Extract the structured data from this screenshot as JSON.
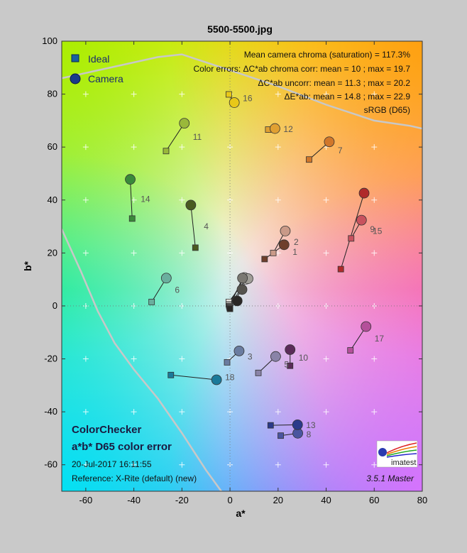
{
  "figure": {
    "title": "5500-5500.jpg"
  },
  "chart_data": {
    "type": "scatter",
    "title": "5500-5500.jpg",
    "xlabel": "a*",
    "ylabel": "b*",
    "xlim": [
      -70,
      80
    ],
    "ylim": [
      -70,
      100
    ],
    "xticks": [
      -60,
      -40,
      -20,
      0,
      20,
      40,
      60,
      80
    ],
    "yticks": [
      -60,
      -40,
      -20,
      0,
      20,
      40,
      60,
      80,
      100
    ],
    "grid": true,
    "legend": {
      "position": "top-left",
      "entries": [
        {
          "label": "Ideal",
          "marker": "square",
          "color": "#1a5fa0"
        },
        {
          "label": "Camera",
          "marker": "circle",
          "color": "#1a3a8a"
        }
      ]
    },
    "stats": [
      "Mean camera chroma (saturation) = 117.3%",
      "Color errors:  ΔC*ab chroma corr:  mean = 10 ;  max = 19.7",
      "ΔC*ab uncorr:  mean = 11.3 ;  max = 20.2",
      "ΔE*ab:  mean = 14.8 ;  max = 22.9",
      "sRGB (D65)"
    ],
    "annotations": {
      "chart_name": "ColorChecker",
      "subtitle": "a*b* D65 color error",
      "timestamp": "20-Jul-2017 16:11:55",
      "reference": "Reference: X-Rite (default) (new)",
      "version": "3.5.1  Master",
      "logo_text": "imatest"
    },
    "gamut_boundary": [
      [
        -70,
        86
      ],
      [
        -60,
        88
      ],
      [
        -45,
        91
      ],
      [
        -30,
        94
      ],
      [
        -20,
        95
      ],
      [
        -10,
        92
      ],
      [
        0,
        89
      ],
      [
        20,
        83
      ],
      [
        40,
        76
      ],
      [
        60,
        70
      ],
      [
        75,
        68
      ],
      [
        80,
        67
      ]
    ],
    "gamut_boundary_lower": [
      [
        -70,
        29
      ],
      [
        -62,
        13
      ],
      [
        -55,
        -2
      ],
      [
        -48,
        -14
      ],
      [
        -40,
        -24
      ],
      [
        -30,
        -35
      ],
      [
        -20,
        -48
      ],
      [
        -10,
        -62
      ],
      [
        -2,
        -72
      ]
    ],
    "points": [
      {
        "id": "1",
        "ideal": [
          14.4,
          17.7
        ],
        "camera": [
          22.5,
          23.1
        ],
        "color": "#6e3f2c"
      },
      {
        "id": "2",
        "ideal": [
          18.0,
          20.0
        ],
        "camera": [
          23.0,
          28.3
        ],
        "color": "#c99a88"
      },
      {
        "id": "3",
        "ideal": [
          -1.2,
          -21.3
        ],
        "camera": [
          3.8,
          -17.0
        ],
        "color": "#6a7ca0"
      },
      {
        "id": "4",
        "ideal": [
          -14.4,
          22.0
        ],
        "camera": [
          -16.3,
          38.1
        ],
        "color": "#4a5a20"
      },
      {
        "id": "5",
        "ideal": [
          11.8,
          -25.3
        ],
        "camera": [
          19.0,
          -19.1
        ],
        "color": "#8a83a8"
      },
      {
        "id": "6",
        "ideal": [
          -32.6,
          1.5
        ],
        "camera": [
          -26.5,
          10.5
        ],
        "color": "#6aaf9e"
      },
      {
        "id": "7",
        "ideal": [
          32.9,
          55.3
        ],
        "camera": [
          41.3,
          62.0
        ],
        "color": "#d1772a"
      },
      {
        "id": "8",
        "ideal": [
          21.1,
          -49.0
        ],
        "camera": [
          28.2,
          -48.1
        ],
        "color": "#4a55a0"
      },
      {
        "id": "9",
        "ideal": [
          50.4,
          25.5
        ],
        "camera": [
          54.7,
          32.4
        ],
        "color": "#c8525e"
      },
      {
        "id": "10",
        "ideal": [
          25.0,
          -22.6
        ],
        "camera": [
          25.0,
          -16.5
        ],
        "color": "#5a2c58"
      },
      {
        "id": "11",
        "ideal": [
          -26.6,
          58.5
        ],
        "camera": [
          -19.0,
          69.0
        ],
        "color": "#9ab83a"
      },
      {
        "id": "12",
        "ideal": [
          15.9,
          66.6
        ],
        "camera": [
          18.7,
          67.0
        ],
        "color": "#e0a032"
      },
      {
        "id": "13",
        "ideal": [
          16.9,
          -45.1
        ],
        "camera": [
          28.1,
          -44.9
        ],
        "color": "#2a3a8a"
      },
      {
        "id": "14",
        "ideal": [
          -40.7,
          33.0
        ],
        "camera": [
          -41.5,
          47.8
        ],
        "color": "#3a8a3a"
      },
      {
        "id": "15",
        "ideal": [
          46.1,
          13.9
        ],
        "camera": [
          55.8,
          42.6
        ],
        "color": "#b02a2a"
      },
      {
        "id": "16",
        "ideal": [
          -0.5,
          79.9
        ],
        "camera": [
          1.8,
          76.8
        ],
        "color": "#e8c818"
      },
      {
        "id": "17",
        "ideal": [
          50.1,
          -16.8
        ],
        "camera": [
          56.6,
          -7.8
        ],
        "color": "#b4509a"
      },
      {
        "id": "18",
        "ideal": [
          -24.6,
          -26.1
        ],
        "camera": [
          -5.6,
          -27.9
        ],
        "color": "#1a7a9a"
      },
      {
        "id": "19",
        "ideal": [
          -0.5,
          1.5
        ],
        "camera": [
          6.7,
          10.1
        ],
        "color": "#efece6"
      },
      {
        "id": "20",
        "ideal": [
          -0.5,
          0.6
        ],
        "camera": [
          6.0,
          10.7
        ],
        "color": "#cac8c2"
      },
      {
        "id": "21",
        "ideal": [
          -0.3,
          0.0
        ],
        "camera": [
          7.5,
          10.3
        ],
        "color": "#a09e98"
      },
      {
        "id": "22",
        "ideal": [
          -0.2,
          -0.3
        ],
        "camera": [
          5.2,
          10.5
        ],
        "color": "#7a7872"
      },
      {
        "id": "23",
        "ideal": [
          -0.1,
          -0.7
        ],
        "camera": [
          5.0,
          6.2
        ],
        "color": "#55534e"
      },
      {
        "id": "24",
        "ideal": [
          0.0,
          -1.1
        ],
        "camera": [
          3.0,
          1.9
        ],
        "color": "#2a2826"
      }
    ]
  }
}
